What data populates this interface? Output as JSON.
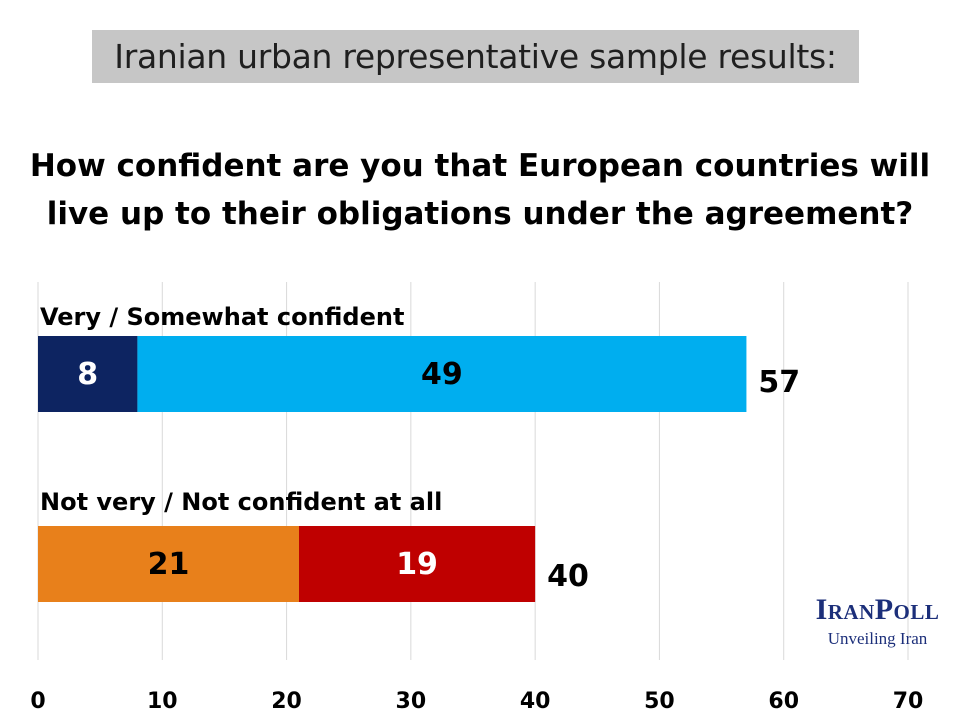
{
  "header": {
    "title": "Iranian urban representative sample results:"
  },
  "question": {
    "line1": "How confident are you that European countries will",
    "line2": "live up to their obligations under the agreement?"
  },
  "chart_data": {
    "type": "bar",
    "orientation": "horizontal",
    "stacked": true,
    "xlim": [
      0,
      70
    ],
    "x_ticks": [
      0,
      10,
      20,
      30,
      40,
      50,
      60,
      70
    ],
    "grid": true,
    "categories": [
      "Very / Somewhat confident",
      "Not very / Not confident at all"
    ],
    "series": [
      {
        "segments": [
          8,
          21
        ],
        "colors": [
          "#0d2461",
          "#e8801b"
        ]
      },
      {
        "segments": [
          49,
          19
        ],
        "colors": [
          "#00aeef",
          "#bf0000"
        ]
      }
    ],
    "totals": [
      57,
      40
    ]
  },
  "logo": {
    "title": "IranPoll",
    "subtitle": "Unveiling Iran"
  }
}
